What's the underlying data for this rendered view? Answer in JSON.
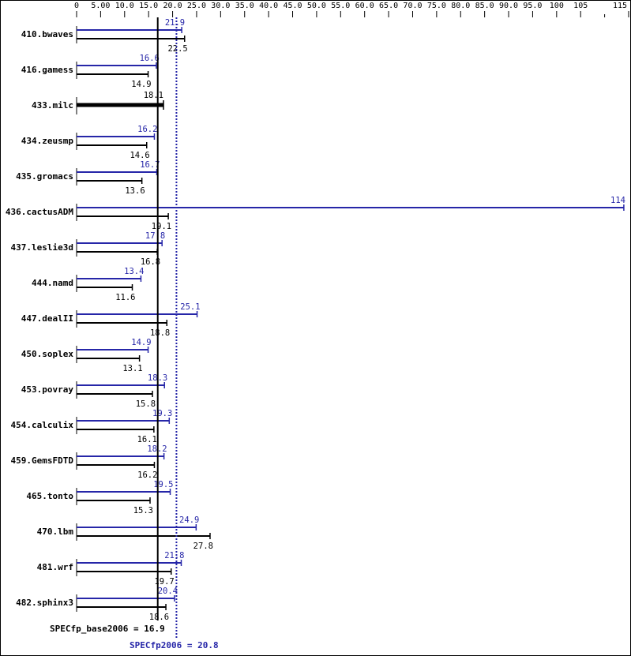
{
  "chart_data": {
    "type": "bar",
    "orientation": "horizontal",
    "title": "",
    "xlim": [
      0,
      115
    ],
    "x_ticks": [
      "0",
      "5.00",
      "10.0",
      "15.0",
      "20.0",
      "25.0",
      "30.0",
      "35.0",
      "40.0",
      "45.0",
      "50.0",
      "55.0",
      "60.0",
      "65.0",
      "70.0",
      "75.0",
      "80.0",
      "85.0",
      "90.0",
      "95.0",
      "100",
      "105",
      "",
      "115"
    ],
    "x_tick_values": [
      0,
      5,
      10,
      15,
      20,
      25,
      30,
      35,
      40,
      45,
      50,
      55,
      60,
      65,
      70,
      75,
      80,
      85,
      90,
      95,
      100,
      105,
      110,
      115
    ],
    "grid": false,
    "categories": [
      "410.bwaves",
      "416.gamess",
      "433.milc",
      "434.zeusmp",
      "435.gromacs",
      "436.cactusADM",
      "437.leslie3d",
      "444.namd",
      "447.dealII",
      "450.soplex",
      "453.povray",
      "454.calculix",
      "459.GemsFDTD",
      "465.tonto",
      "470.lbm",
      "481.wrf",
      "482.sphinx3"
    ],
    "series": [
      {
        "key": "peak",
        "color": "#2626a8",
        "values": [
          21.9,
          16.6,
          null,
          16.2,
          16.7,
          114,
          17.8,
          13.4,
          25.1,
          14.9,
          18.3,
          19.3,
          18.2,
          19.5,
          24.9,
          21.8,
          20.4
        ],
        "labels": [
          "21.9",
          "16.6",
          "",
          "16.2",
          "16.7",
          "114",
          "17.8",
          "13.4",
          "25.1",
          "14.9",
          "18.3",
          "19.3",
          "18.2",
          "19.5",
          "24.9",
          "21.8",
          "20.4"
        ]
      },
      {
        "key": "base",
        "color": "#000000",
        "values": [
          22.5,
          14.9,
          18.1,
          14.6,
          13.6,
          19.1,
          16.8,
          11.6,
          18.8,
          13.1,
          15.8,
          16.1,
          16.2,
          15.3,
          27.8,
          19.7,
          18.6
        ],
        "labels": [
          "22.5",
          "14.9",
          "18.1",
          "14.6",
          "13.6",
          "19.1",
          "16.8",
          "11.6",
          "18.8",
          "13.1",
          "15.8",
          "16.1",
          "16.2",
          "15.3",
          "27.8",
          "19.7",
          "18.6"
        ]
      }
    ],
    "summary": {
      "base": {
        "label": "SPECfp_base2006 = 16.9",
        "value": 16.9,
        "color": "#000000"
      },
      "peak": {
        "label": "SPECfp2006 = 20.8",
        "value": 20.8,
        "color": "#2626a8"
      }
    }
  }
}
